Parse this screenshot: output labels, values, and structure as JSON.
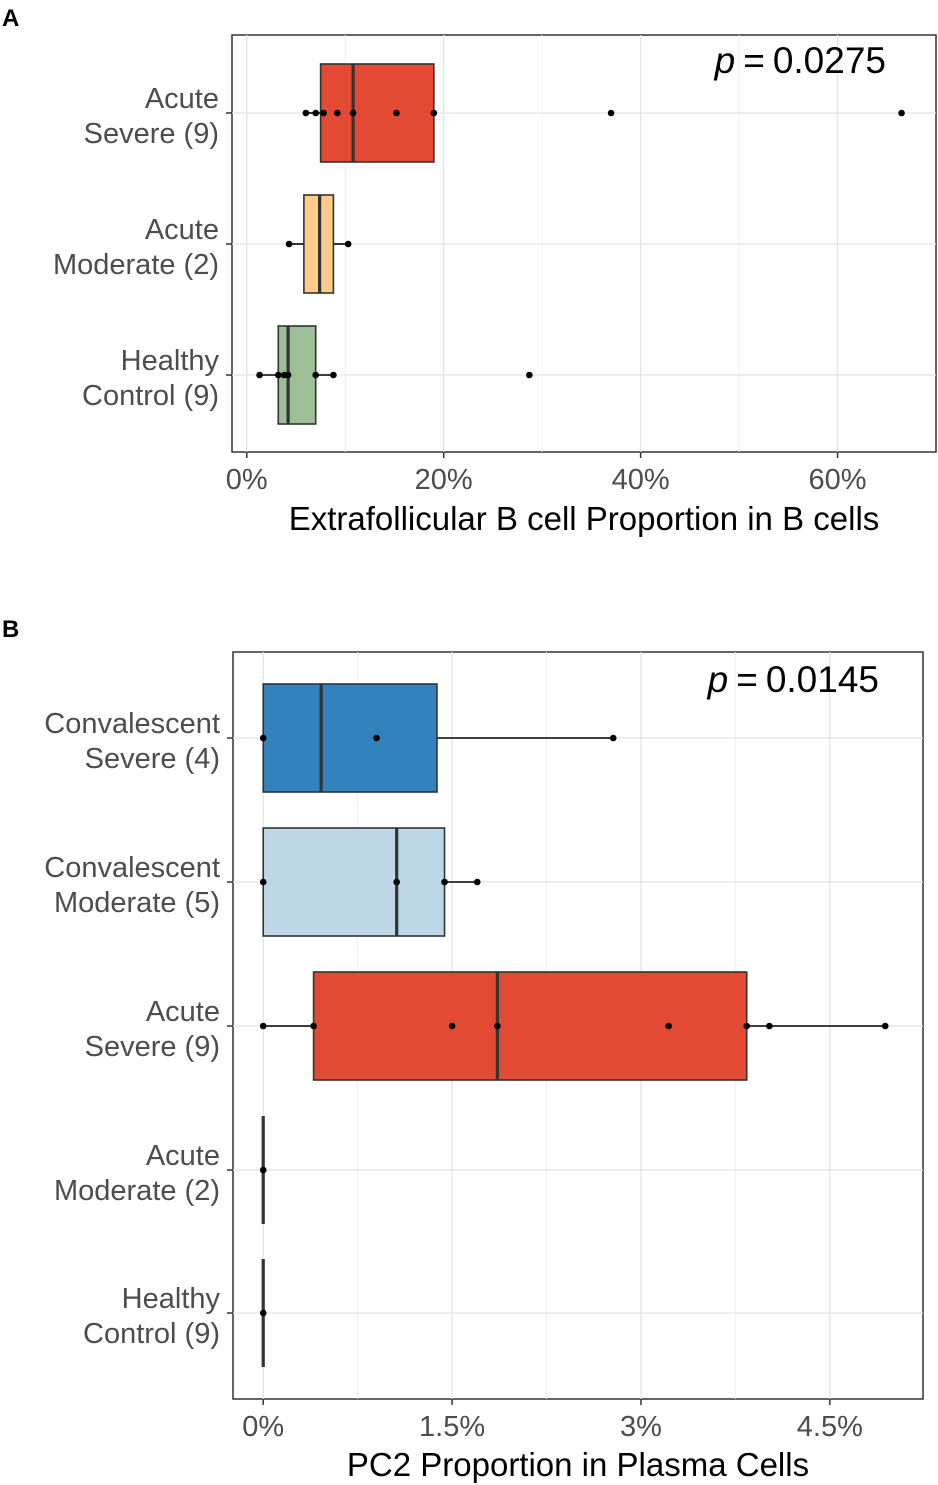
{
  "chart_data": [
    {
      "type": "boxplot",
      "panel_label": "A",
      "xlabel": "Extrafollicular B cell Proportion in B cells",
      "ylabel": "",
      "xlim": [
        -1.5,
        70
      ],
      "ticks": [
        0,
        20,
        40,
        60
      ],
      "tick_labels": [
        "0%",
        "20%",
        "40%",
        "60%"
      ],
      "grid": true,
      "annotation": {
        "p_label": "p",
        "p_equals": "=",
        "p_value": "0.0275"
      },
      "groups": [
        {
          "label_line1": "Acute",
          "label_line2": "Severe (9)",
          "color": "#E34A33",
          "q1": 7.5,
          "median": 10.8,
          "q3": 19.0,
          "whisker_low": 6.0,
          "whisker_high": 19.0,
          "points": [
            6.0,
            7.0,
            7.8,
            9.2,
            10.8,
            15.2,
            19.0,
            37.0,
            66.5
          ]
        },
        {
          "label_line1": "Acute",
          "label_line2": "Moderate (2)",
          "color": "#FDCC8A",
          "q1": 5.8,
          "median": 7.4,
          "q3": 8.8,
          "whisker_low": 4.3,
          "whisker_high": 10.3,
          "points": [
            4.3,
            10.3
          ]
        },
        {
          "label_line1": "Healthy",
          "label_line2": "Control (9)",
          "color": "#9DBE97",
          "q1": 3.2,
          "median": 4.2,
          "q3": 7.0,
          "whisker_low": 1.3,
          "whisker_high": 8.8,
          "points": [
            1.3,
            3.2,
            3.8,
            4.2,
            7.0,
            8.8,
            28.7
          ]
        }
      ]
    },
    {
      "type": "boxplot",
      "panel_label": "B",
      "xlabel": "PC2 Proportion in Plasma Cells",
      "ylabel": "",
      "xlim": [
        -0.12,
        2.62
      ],
      "ticks": [
        0,
        0.75,
        1.5,
        2.25
      ],
      "tick_labels": [
        "0%",
        "1.5%",
        "3%",
        "4.5%"
      ],
      "grid": true,
      "annotation": {
        "p_label": "p",
        "p_equals": "=",
        "p_value": "0.0145"
      },
      "groups": [
        {
          "label_line1": "Convalescent",
          "label_line2": "Severe (4)",
          "color": "#3182BD",
          "q1": 0.0,
          "median": 0.23,
          "q3": 0.69,
          "whisker_low": 0.0,
          "whisker_high": 1.39,
          "points": [
            0.0,
            0.45,
            1.39
          ]
        },
        {
          "label_line1": "Convalescent",
          "label_line2": "Moderate (5)",
          "color": "#BDD7E7",
          "q1": 0.0,
          "median": 0.53,
          "q3": 0.72,
          "whisker_low": 0.0,
          "whisker_high": 0.85,
          "points": [
            0.0,
            0.53,
            0.72,
            0.85
          ]
        },
        {
          "label_line1": "Acute",
          "label_line2": "Severe (9)",
          "color": "#E34A33",
          "q1": 0.2,
          "median": 0.93,
          "q3": 1.92,
          "whisker_low": 0.0,
          "whisker_high": 2.47,
          "points": [
            0.0,
            0.2,
            0.75,
            0.93,
            1.61,
            1.92,
            2.01,
            2.47
          ]
        },
        {
          "label_line1": "Acute",
          "label_line2": "Moderate (2)",
          "color": "#333333",
          "q1": 0.0,
          "median": 0.0,
          "q3": 0.0,
          "whisker_low": 0.0,
          "whisker_high": 0.0,
          "points": [
            0.0
          ]
        },
        {
          "label_line1": "Healthy",
          "label_line2": "Control (9)",
          "color": "#333333",
          "q1": 0.0,
          "median": 0.0,
          "q3": 0.0,
          "whisker_low": 0.0,
          "whisker_high": 0.0,
          "points": [
            0.0
          ]
        }
      ]
    }
  ]
}
